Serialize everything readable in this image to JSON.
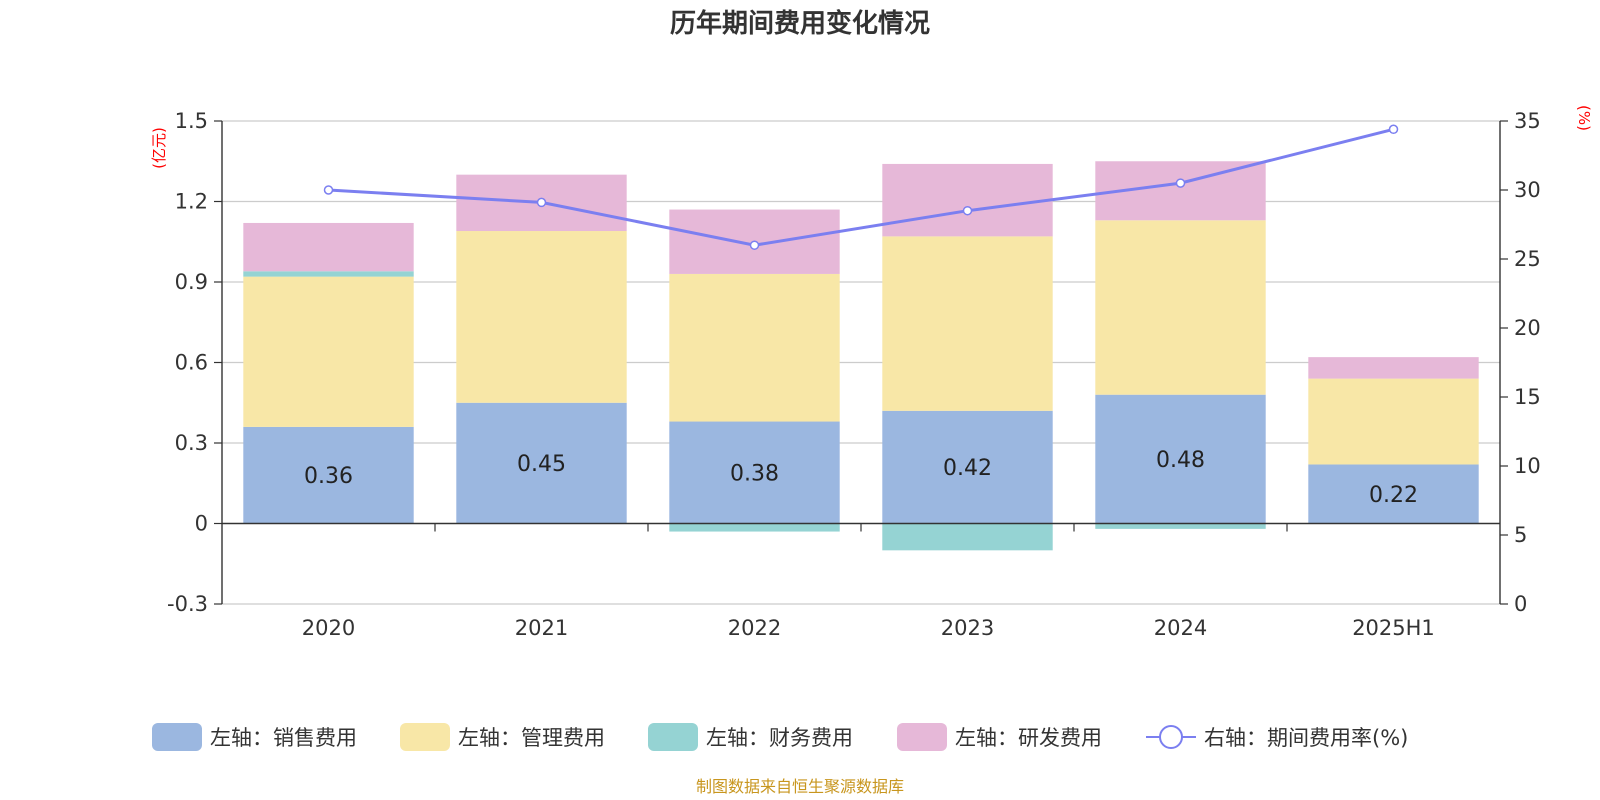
{
  "chart_data": {
    "type": "bar",
    "title": "历年期间费用变化情况",
    "categories": [
      "2020",
      "2021",
      "2022",
      "2023",
      "2024",
      "2025H1"
    ],
    "left_axis": {
      "unit": "(亿元)",
      "ylim": [
        -0.3,
        1.5
      ],
      "ticks": [
        "-0.3",
        "0",
        "0.3",
        "0.6",
        "0.9",
        "1.2",
        "1.5"
      ]
    },
    "right_axis": {
      "unit": "(%)",
      "ylim": [
        0,
        35
      ],
      "ticks": [
        "0",
        "5",
        "10",
        "15",
        "20",
        "25",
        "30",
        "35"
      ]
    },
    "series": [
      {
        "name": "左轴：销售费用",
        "type": "bar",
        "axis": "left",
        "color": "#9bb7e0",
        "values": [
          0.36,
          0.45,
          0.38,
          0.42,
          0.48,
          0.22
        ],
        "labels": [
          "0.36",
          "0.45",
          "0.38",
          "0.42",
          "0.48",
          "0.22"
        ]
      },
      {
        "name": "左轴：管理费用",
        "type": "bar",
        "axis": "left",
        "color": "#f8e7a7",
        "values": [
          0.56,
          0.64,
          0.55,
          0.65,
          0.65,
          0.32
        ]
      },
      {
        "name": "左轴：财务费用",
        "type": "bar",
        "axis": "left",
        "color": "#95d3d3",
        "values": [
          0.02,
          0.0,
          -0.03,
          -0.1,
          -0.02,
          0.0
        ]
      },
      {
        "name": "左轴：研发费用",
        "type": "bar",
        "axis": "left",
        "color": "#e6b8d8",
        "values": [
          0.18,
          0.21,
          0.24,
          0.27,
          0.22,
          0.08
        ]
      },
      {
        "name": "右轴：期间费用率(%)",
        "type": "line",
        "axis": "right",
        "color": "#7b7ff0",
        "values": [
          30.0,
          29.1,
          26.0,
          28.5,
          30.5,
          34.4
        ]
      }
    ],
    "grid": true,
    "legend": "bottom"
  },
  "source_note": "制图数据来自恒生聚源数据库"
}
